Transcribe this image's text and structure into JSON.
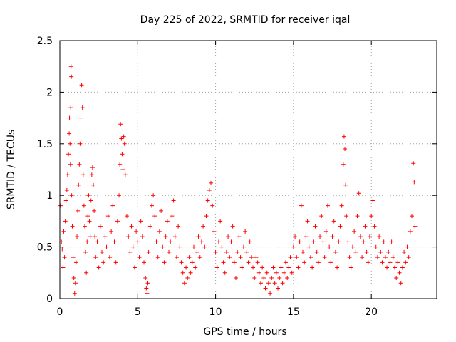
{
  "chart_data": {
    "type": "scatter",
    "title": "Day 225 of 2022, SRMTID for receiver iqal",
    "xlabel": "GPS time / hours",
    "ylabel": "SRMTID / TECUs",
    "xlim": [
      0,
      24.2
    ],
    "ylim": [
      0,
      2.5
    ],
    "xticks": [
      0,
      5,
      10,
      15,
      20
    ],
    "xtick_labels": [
      "0",
      "5",
      "10",
      "15",
      "20"
    ],
    "yticks": [
      0,
      0.5,
      1,
      1.5,
      2,
      2.5
    ],
    "ytick_labels": [
      "0",
      "0.5",
      "1",
      "1.5",
      "2",
      "2.5"
    ],
    "grid": true,
    "marker": "+",
    "color": "#ff0000",
    "series": [
      {
        "name": "SRMTID",
        "points": [
          [
            0.05,
            0.9
          ],
          [
            0.1,
            0.55
          ],
          [
            0.15,
            0.48
          ],
          [
            0.2,
            0.3
          ],
          [
            0.25,
            0.65
          ],
          [
            0.3,
            0.4
          ],
          [
            0.35,
            0.75
          ],
          [
            0.4,
            0.95
          ],
          [
            0.45,
            1.05
          ],
          [
            0.5,
            1.2
          ],
          [
            0.55,
            1.4
          ],
          [
            0.6,
            1.6
          ],
          [
            0.62,
            1.75
          ],
          [
            0.65,
            1.5
          ],
          [
            0.68,
            1.3
          ],
          [
            0.7,
            1.85
          ],
          [
            0.72,
            2.25
          ],
          [
            0.74,
            2.15
          ],
          [
            0.76,
            1.0
          ],
          [
            0.8,
            0.7
          ],
          [
            0.85,
            0.4
          ],
          [
            0.9,
            0.2
          ],
          [
            0.95,
            0.05
          ],
          [
            1.0,
            0.15
          ],
          [
            1.05,
            0.35
          ],
          [
            1.1,
            0.6
          ],
          [
            1.15,
            0.85
          ],
          [
            1.2,
            1.1
          ],
          [
            1.25,
            1.3
          ],
          [
            1.3,
            1.5
          ],
          [
            1.35,
            1.75
          ],
          [
            1.4,
            2.07
          ],
          [
            1.45,
            1.85
          ],
          [
            1.5,
            1.2
          ],
          [
            1.55,
            0.9
          ],
          [
            1.6,
            0.7
          ],
          [
            1.65,
            0.45
          ],
          [
            1.7,
            0.25
          ],
          [
            1.75,
            0.55
          ],
          [
            1.8,
            0.8
          ],
          [
            1.85,
            1.0
          ],
          [
            1.9,
            0.75
          ],
          [
            1.95,
            0.6
          ],
          [
            2.0,
            0.95
          ],
          [
            2.05,
            1.2
          ],
          [
            2.1,
            1.27
          ],
          [
            2.15,
            1.1
          ],
          [
            2.2,
            0.85
          ],
          [
            2.25,
            0.6
          ],
          [
            2.3,
            0.4
          ],
          [
            2.4,
            0.55
          ],
          [
            2.5,
            0.3
          ],
          [
            2.6,
            0.7
          ],
          [
            2.7,
            0.45
          ],
          [
            2.8,
            0.35
          ],
          [
            2.9,
            0.6
          ],
          [
            3.0,
            0.5
          ],
          [
            3.1,
            0.8
          ],
          [
            3.2,
            0.4
          ],
          [
            3.3,
            0.65
          ],
          [
            3.4,
            0.9
          ],
          [
            3.5,
            0.55
          ],
          [
            3.6,
            0.35
          ],
          [
            3.7,
            0.75
          ],
          [
            3.8,
            1.0
          ],
          [
            3.85,
            1.3
          ],
          [
            3.9,
            1.69
          ],
          [
            3.95,
            1.55
          ],
          [
            4.0,
            1.4
          ],
          [
            4.05,
            1.25
          ],
          [
            4.1,
            1.57
          ],
          [
            4.15,
            1.5
          ],
          [
            4.2,
            1.2
          ],
          [
            4.3,
            0.8
          ],
          [
            4.4,
            0.6
          ],
          [
            4.5,
            0.45
          ],
          [
            4.6,
            0.7
          ],
          [
            4.7,
            0.5
          ],
          [
            4.8,
            0.3
          ],
          [
            4.9,
            0.65
          ],
          [
            5.0,
            0.55
          ],
          [
            5.1,
            0.4
          ],
          [
            5.2,
            0.75
          ],
          [
            5.3,
            0.6
          ],
          [
            5.4,
            0.35
          ],
          [
            5.5,
            0.2
          ],
          [
            5.55,
            0.1
          ],
          [
            5.6,
            0.05
          ],
          [
            5.65,
            0.15
          ],
          [
            5.7,
            0.45
          ],
          [
            5.8,
            0.7
          ],
          [
            5.9,
            0.9
          ],
          [
            6.0,
            1.0
          ],
          [
            6.1,
            0.8
          ],
          [
            6.2,
            0.55
          ],
          [
            6.3,
            0.4
          ],
          [
            6.4,
            0.65
          ],
          [
            6.5,
            0.85
          ],
          [
            6.6,
            0.5
          ],
          [
            6.7,
            0.35
          ],
          [
            6.8,
            0.6
          ],
          [
            6.9,
            0.75
          ],
          [
            7.0,
            0.45
          ],
          [
            7.1,
            0.55
          ],
          [
            7.2,
            0.8
          ],
          [
            7.3,
            0.95
          ],
          [
            7.4,
            0.6
          ],
          [
            7.5,
            0.4
          ],
          [
            7.6,
            0.7
          ],
          [
            7.7,
            0.5
          ],
          [
            7.8,
            0.35
          ],
          [
            7.9,
            0.25
          ],
          [
            8.0,
            0.15
          ],
          [
            8.1,
            0.3
          ],
          [
            8.2,
            0.2
          ],
          [
            8.3,
            0.4
          ],
          [
            8.4,
            0.25
          ],
          [
            8.5,
            0.35
          ],
          [
            8.6,
            0.5
          ],
          [
            8.7,
            0.3
          ],
          [
            8.8,
            0.45
          ],
          [
            8.9,
            0.6
          ],
          [
            9.0,
            0.4
          ],
          [
            9.1,
            0.55
          ],
          [
            9.2,
            0.7
          ],
          [
            9.3,
            0.5
          ],
          [
            9.4,
            0.8
          ],
          [
            9.5,
            0.95
          ],
          [
            9.6,
            1.05
          ],
          [
            9.7,
            1.12
          ],
          [
            9.8,
            0.9
          ],
          [
            9.9,
            0.65
          ],
          [
            10.0,
            0.45
          ],
          [
            10.1,
            0.3
          ],
          [
            10.2,
            0.55
          ],
          [
            10.3,
            0.75
          ],
          [
            10.4,
            0.5
          ],
          [
            10.5,
            0.35
          ],
          [
            10.6,
            0.25
          ],
          [
            10.7,
            0.45
          ],
          [
            10.8,
            0.6
          ],
          [
            10.9,
            0.4
          ],
          [
            11.0,
            0.55
          ],
          [
            11.1,
            0.7
          ],
          [
            11.2,
            0.35
          ],
          [
            11.3,
            0.2
          ],
          [
            11.4,
            0.45
          ],
          [
            11.5,
            0.6
          ],
          [
            11.6,
            0.4
          ],
          [
            11.7,
            0.3
          ],
          [
            11.8,
            0.5
          ],
          [
            11.9,
            0.65
          ],
          [
            12.0,
            0.45
          ],
          [
            12.1,
            0.35
          ],
          [
            12.2,
            0.55
          ],
          [
            12.3,
            0.4
          ],
          [
            12.4,
            0.3
          ],
          [
            12.5,
            0.2
          ],
          [
            12.6,
            0.4
          ],
          [
            12.7,
            0.35
          ],
          [
            12.8,
            0.25
          ],
          [
            12.9,
            0.15
          ],
          [
            13.0,
            0.3
          ],
          [
            13.1,
            0.2
          ],
          [
            13.2,
            0.1
          ],
          [
            13.3,
            0.25
          ],
          [
            13.4,
            0.15
          ],
          [
            13.5,
            0.05
          ],
          [
            13.6,
            0.2
          ],
          [
            13.7,
            0.3
          ],
          [
            13.8,
            0.15
          ],
          [
            13.9,
            0.25
          ],
          [
            14.0,
            0.1
          ],
          [
            14.1,
            0.2
          ],
          [
            14.2,
            0.3
          ],
          [
            14.3,
            0.15
          ],
          [
            14.4,
            0.25
          ],
          [
            14.5,
            0.35
          ],
          [
            14.6,
            0.2
          ],
          [
            14.7,
            0.3
          ],
          [
            14.8,
            0.4
          ],
          [
            14.9,
            0.25
          ],
          [
            15.0,
            0.5
          ],
          [
            15.1,
            0.6
          ],
          [
            15.2,
            0.4
          ],
          [
            15.3,
            0.3
          ],
          [
            15.4,
            0.55
          ],
          [
            15.5,
            0.9
          ],
          [
            15.6,
            0.45
          ],
          [
            15.7,
            0.35
          ],
          [
            15.8,
            0.6
          ],
          [
            15.9,
            0.75
          ],
          [
            16.0,
            0.5
          ],
          [
            16.1,
            0.4
          ],
          [
            16.2,
            0.3
          ],
          [
            16.3,
            0.55
          ],
          [
            16.4,
            0.7
          ],
          [
            16.5,
            0.45
          ],
          [
            16.6,
            0.35
          ],
          [
            16.7,
            0.6
          ],
          [
            16.8,
            0.8
          ],
          [
            16.9,
            0.55
          ],
          [
            17.0,
            0.4
          ],
          [
            17.1,
            0.65
          ],
          [
            17.2,
            0.9
          ],
          [
            17.3,
            0.5
          ],
          [
            17.4,
            0.35
          ],
          [
            17.5,
            0.6
          ],
          [
            17.6,
            0.75
          ],
          [
            17.7,
            0.45
          ],
          [
            17.8,
            0.3
          ],
          [
            17.9,
            0.55
          ],
          [
            18.0,
            0.7
          ],
          [
            18.1,
            0.9
          ],
          [
            18.2,
            1.3
          ],
          [
            18.25,
            1.57
          ],
          [
            18.3,
            1.45
          ],
          [
            18.35,
            1.1
          ],
          [
            18.4,
            0.8
          ],
          [
            18.5,
            0.55
          ],
          [
            18.6,
            0.4
          ],
          [
            18.7,
            0.3
          ],
          [
            18.8,
            0.5
          ],
          [
            18.9,
            0.65
          ],
          [
            19.0,
            0.45
          ],
          [
            19.1,
            0.8
          ],
          [
            19.2,
            1.02
          ],
          [
            19.3,
            0.6
          ],
          [
            19.4,
            0.4
          ],
          [
            19.5,
            0.55
          ],
          [
            19.6,
            0.7
          ],
          [
            19.7,
            0.45
          ],
          [
            19.8,
            0.35
          ],
          [
            19.9,
            0.6
          ],
          [
            20.0,
            0.8
          ],
          [
            20.1,
            0.95
          ],
          [
            20.2,
            0.7
          ],
          [
            20.3,
            0.5
          ],
          [
            20.4,
            0.4
          ],
          [
            20.5,
            0.6
          ],
          [
            20.6,
            0.45
          ],
          [
            20.7,
            0.35
          ],
          [
            20.8,
            0.55
          ],
          [
            20.9,
            0.4
          ],
          [
            21.0,
            0.3
          ],
          [
            21.1,
            0.45
          ],
          [
            21.2,
            0.35
          ],
          [
            21.3,
            0.55
          ],
          [
            21.4,
            0.4
          ],
          [
            21.5,
            0.3
          ],
          [
            21.6,
            0.2
          ],
          [
            21.7,
            0.35
          ],
          [
            21.8,
            0.25
          ],
          [
            21.9,
            0.15
          ],
          [
            22.0,
            0.3
          ],
          [
            22.1,
            0.45
          ],
          [
            22.2,
            0.35
          ],
          [
            22.3,
            0.5
          ],
          [
            22.4,
            0.4
          ],
          [
            22.5,
            0.65
          ],
          [
            22.6,
            0.8
          ],
          [
            22.7,
            1.31
          ],
          [
            22.75,
            1.13
          ],
          [
            22.8,
            0.7
          ]
        ]
      }
    ]
  }
}
